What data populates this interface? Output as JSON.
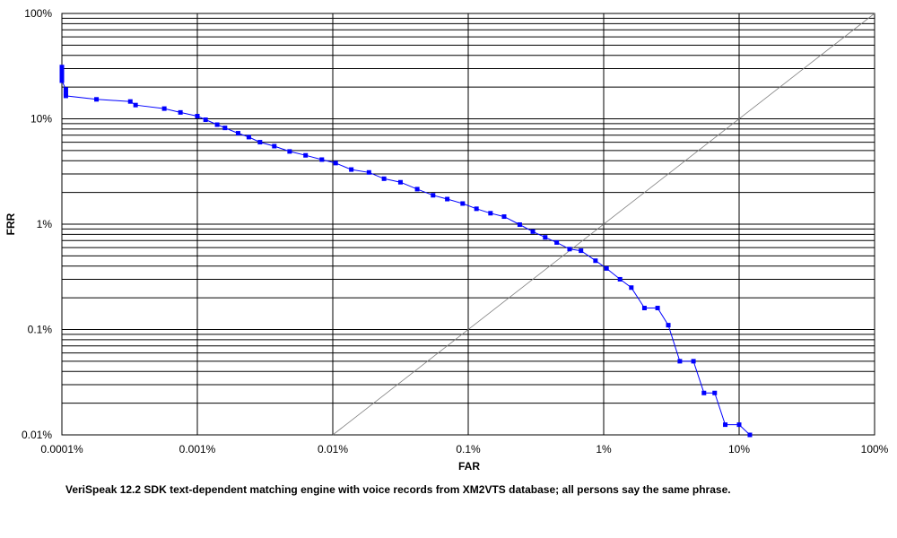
{
  "caption": "VeriSpeak 12.2 SDK text-dependent matching engine with voice records from XM2VTS database; all persons say the same phrase.",
  "chart_data": {
    "type": "line",
    "xlabel": "FAR",
    "ylabel": "FRR",
    "xscale": "log",
    "yscale": "log",
    "xlim": [
      0.0001,
      100
    ],
    "ylim": [
      0.01,
      100
    ],
    "x_ticks": [
      {
        "value": 0.0001,
        "label": "0.0001%"
      },
      {
        "value": 0.001,
        "label": "0.001%"
      },
      {
        "value": 0.01,
        "label": "0.01%"
      },
      {
        "value": 0.1,
        "label": "0.1%"
      },
      {
        "value": 1,
        "label": "1%"
      },
      {
        "value": 10,
        "label": "10%"
      },
      {
        "value": 100,
        "label": "100%"
      }
    ],
    "y_ticks": [
      {
        "value": 0.01,
        "label": "0.01%"
      },
      {
        "value": 0.1,
        "label": "0.1%"
      },
      {
        "value": 1,
        "label": "1%"
      },
      {
        "value": 10,
        "label": "10%"
      },
      {
        "value": 100,
        "label": "100%"
      }
    ],
    "grid": true,
    "reference_line": {
      "from": [
        0.01,
        0.01
      ],
      "to": [
        100,
        100
      ],
      "color": "#808080"
    },
    "series": [
      {
        "color": "#0000ff",
        "marker": "square",
        "points": [
          [
            0.0001,
            31
          ],
          [
            0.0001,
            29
          ],
          [
            0.0001,
            27
          ],
          [
            0.0001,
            25
          ],
          [
            0.0001,
            23
          ],
          [
            0.000107,
            19
          ],
          [
            0.000107,
            17.5
          ],
          [
            0.000107,
            16.5
          ],
          [
            0.00018,
            15.3
          ],
          [
            0.00032,
            14.6
          ],
          [
            0.00035,
            13.5
          ],
          [
            0.00057,
            12.5
          ],
          [
            0.00075,
            11.5
          ],
          [
            0.001,
            10.6
          ],
          [
            0.00115,
            9.8
          ],
          [
            0.0014,
            8.8
          ],
          [
            0.0016,
            8.2
          ],
          [
            0.002,
            7.3
          ],
          [
            0.0024,
            6.7
          ],
          [
            0.0029,
            6.0
          ],
          [
            0.0037,
            5.5
          ],
          [
            0.0048,
            4.9
          ],
          [
            0.0063,
            4.5
          ],
          [
            0.0083,
            4.1
          ],
          [
            0.0105,
            3.8
          ],
          [
            0.0137,
            3.3
          ],
          [
            0.0185,
            3.1
          ],
          [
            0.0239,
            2.7
          ],
          [
            0.0316,
            2.5
          ],
          [
            0.042,
            2.15
          ],
          [
            0.055,
            1.88
          ],
          [
            0.07,
            1.73
          ],
          [
            0.091,
            1.57
          ],
          [
            0.115,
            1.4
          ],
          [
            0.146,
            1.27
          ],
          [
            0.184,
            1.18
          ],
          [
            0.24,
            0.99
          ],
          [
            0.3,
            0.85
          ],
          [
            0.37,
            0.75
          ],
          [
            0.45,
            0.67
          ],
          [
            0.56,
            0.58
          ],
          [
            0.68,
            0.56
          ],
          [
            0.87,
            0.45
          ],
          [
            1.05,
            0.38
          ],
          [
            1.32,
            0.3
          ],
          [
            1.6,
            0.25
          ],
          [
            2.0,
            0.16
          ],
          [
            2.5,
            0.16
          ],
          [
            3.0,
            0.11
          ],
          [
            3.65,
            0.05
          ],
          [
            4.6,
            0.05
          ],
          [
            5.5,
            0.025
          ],
          [
            6.6,
            0.025
          ],
          [
            7.9,
            0.0125
          ],
          [
            10.0,
            0.0125
          ],
          [
            12.0,
            0.01
          ]
        ]
      }
    ]
  }
}
